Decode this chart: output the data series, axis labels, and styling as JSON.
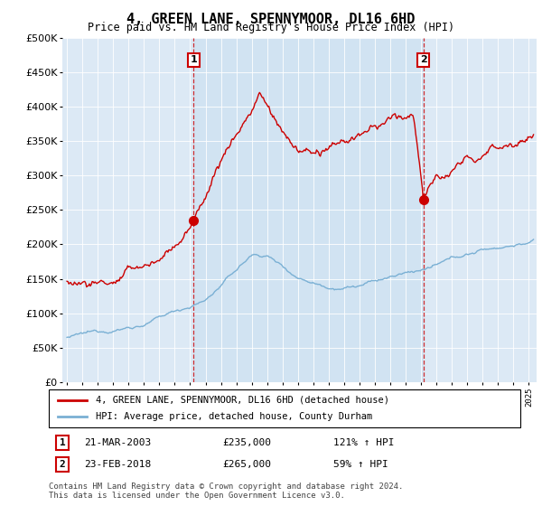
{
  "title": "4, GREEN LANE, SPENNYMOOR, DL16 6HD",
  "subtitle": "Price paid vs. HM Land Registry's House Price Index (HPI)",
  "bg_color": "#dce9f5",
  "plot_bg_color": "#dce9f5",
  "plot_bg_between": "#c8dff0",
  "red_line_color": "#cc0000",
  "blue_line_color": "#7ab0d4",
  "ylim": [
    0,
    500000
  ],
  "yticks": [
    0,
    50000,
    100000,
    150000,
    200000,
    250000,
    300000,
    350000,
    400000,
    450000,
    500000
  ],
  "xlim_start": 1994.7,
  "xlim_end": 2025.5,
  "transaction1_x": 2003.22,
  "transaction1_y": 235000,
  "transaction1_label": "1",
  "transaction2_x": 2018.15,
  "transaction2_y": 265000,
  "transaction2_label": "2",
  "legend_red_label": "4, GREEN LANE, SPENNYMOOR, DL16 6HD (detached house)",
  "legend_blue_label": "HPI: Average price, detached house, County Durham",
  "annotation1_date": "21-MAR-2003",
  "annotation1_price": "£235,000",
  "annotation1_hpi": "121% ↑ HPI",
  "annotation2_date": "23-FEB-2018",
  "annotation2_price": "£265,000",
  "annotation2_hpi": "59% ↑ HPI",
  "footer": "Contains HM Land Registry data © Crown copyright and database right 2024.\nThis data is licensed under the Open Government Licence v3.0."
}
